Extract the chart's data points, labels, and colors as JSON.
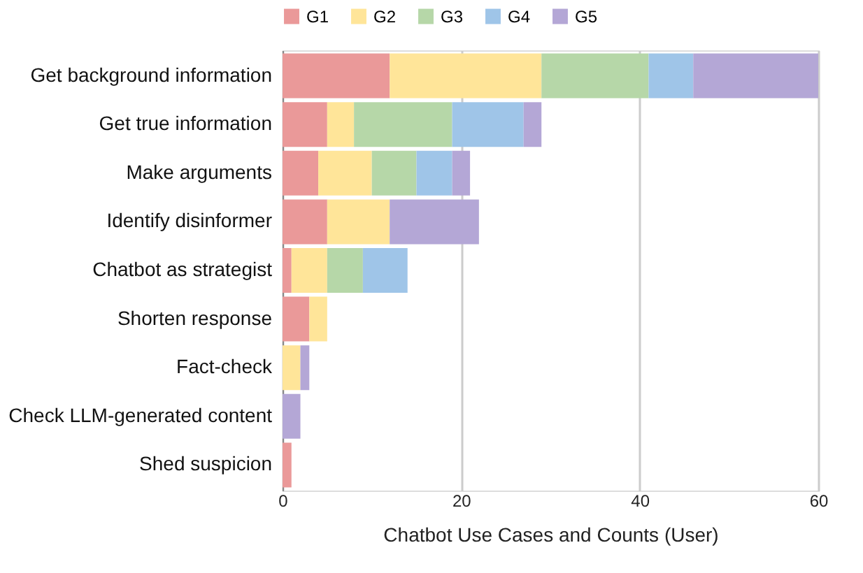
{
  "chart_data": {
    "type": "bar",
    "orientation": "horizontal",
    "stacked": true,
    "xlabel": "Chatbot Use Cases and Counts (User)",
    "categories": [
      "Get background information",
      "Get true information",
      "Make arguments",
      "Identify disinformer",
      "Chatbot as strategist",
      "Shorten response",
      "Fact-check",
      "Check LLM-generated content",
      "Shed suspicion"
    ],
    "series": [
      {
        "name": "G1",
        "color": "#ea9999",
        "values": [
          12,
          5,
          4,
          5,
          1,
          3,
          0,
          0,
          1
        ]
      },
      {
        "name": "G2",
        "color": "#ffe599",
        "values": [
          17,
          3,
          6,
          7,
          4,
          2,
          2,
          0,
          0
        ]
      },
      {
        "name": "G3",
        "color": "#b6d7a8",
        "values": [
          12,
          11,
          5,
          0,
          4,
          0,
          0,
          0,
          0
        ]
      },
      {
        "name": "G4",
        "color": "#9fc5e8",
        "values": [
          5,
          8,
          4,
          0,
          5,
          0,
          0,
          0,
          0
        ]
      },
      {
        "name": "G5",
        "color": "#b4a7d6",
        "values": [
          14,
          2,
          2,
          10,
          0,
          0,
          1,
          2,
          0
        ]
      }
    ],
    "xlim": [
      0,
      60
    ],
    "xticks": [
      0,
      20,
      40,
      60
    ],
    "grid": "x",
    "legend": "top"
  }
}
